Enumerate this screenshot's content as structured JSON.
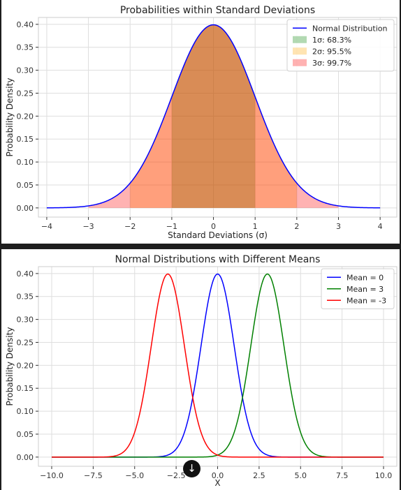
{
  "chart_data": [
    {
      "type": "line",
      "title": "Probabilities within Standard Deviations",
      "xlabel": "Standard Deviations (σ)",
      "ylabel": "Probability Density",
      "xlim": [
        -4.2,
        4.4
      ],
      "ylim": [
        -0.02,
        0.415
      ],
      "xticks": [
        -4,
        -3,
        -2,
        -1,
        0,
        1,
        2,
        3,
        4
      ],
      "xtick_labels": [
        "−4",
        "−3",
        "−2",
        "−1",
        "0",
        "1",
        "2",
        "3",
        "4"
      ],
      "yticks": [
        0.0,
        0.05,
        0.1,
        0.15,
        0.2,
        0.25,
        0.3,
        0.35,
        0.4
      ],
      "ytick_labels": [
        "0.00",
        "0.05",
        "0.10",
        "0.15",
        "0.20",
        "0.25",
        "0.30",
        "0.35",
        "0.40"
      ],
      "grid": true,
      "legend_position": "top-right",
      "series": [
        {
          "name": "Normal Distribution",
          "kind": "line",
          "mean": 0,
          "sd": 1,
          "x_range": [
            -4,
            4
          ],
          "color": "#0000ff"
        }
      ],
      "bands": [
        {
          "name": "1σ: 68.3%",
          "from": -1,
          "to": 1,
          "color": "#008000"
        },
        {
          "name": "2σ: 95.5%",
          "from": -2,
          "to": 2,
          "color": "#ffa500"
        },
        {
          "name": "3σ: 99.7%",
          "from": -3,
          "to": 3,
          "color": "#ff0000"
        }
      ]
    },
    {
      "type": "line",
      "title": "Normal Distributions with Different Means",
      "xlabel": "X",
      "ylabel": "Probability Density",
      "xlim": [
        -10.8,
        10.8
      ],
      "ylim": [
        -0.02,
        0.415
      ],
      "xticks": [
        -10,
        -7.5,
        -5,
        -2.5,
        0,
        2.5,
        5,
        7.5,
        10
      ],
      "xtick_labels": [
        "−10.0",
        "−7.5",
        "−5.0",
        "−2.5",
        "0.0",
        "2.5",
        "5.0",
        "7.5",
        "10.0"
      ],
      "yticks": [
        0.0,
        0.05,
        0.1,
        0.15,
        0.2,
        0.25,
        0.3,
        0.35,
        0.4
      ],
      "ytick_labels": [
        "0.00",
        "0.05",
        "0.10",
        "0.15",
        "0.20",
        "0.25",
        "0.30",
        "0.35",
        "0.40"
      ],
      "grid": true,
      "legend_position": "top-right",
      "series": [
        {
          "name": "Mean = 0",
          "kind": "line",
          "mean": 0,
          "sd": 1,
          "x_range": [
            -10,
            10
          ],
          "color": "#0000ff"
        },
        {
          "name": "Mean = 3",
          "kind": "line",
          "mean": 3,
          "sd": 1,
          "x_range": [
            -10,
            10
          ],
          "color": "#008000"
        },
        {
          "name": "Mean = -3",
          "kind": "line",
          "mean": -3,
          "sd": 1,
          "x_range": [
            -10,
            10
          ],
          "color": "#ff0000"
        }
      ]
    }
  ],
  "ui": {
    "scroll_down_icon": "arrow-down-icon",
    "scroll_down_glyph": "↓"
  }
}
